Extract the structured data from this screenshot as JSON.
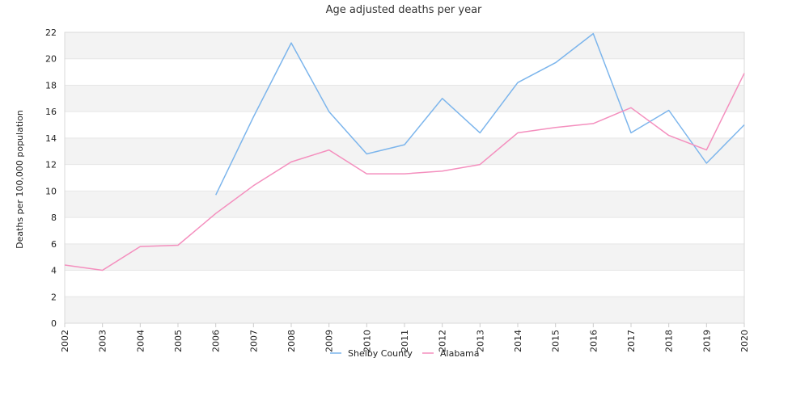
{
  "chart_data": {
    "type": "line",
    "title": "Age adjusted deaths per year",
    "ylabel": "Deaths per 100,000 population",
    "xlabel": "",
    "x": [
      "2002",
      "2003",
      "2004",
      "2005",
      "2006",
      "2007",
      "2008",
      "2009",
      "2010",
      "2011",
      "2012",
      "2013",
      "2014",
      "2015",
      "2016",
      "2017",
      "2018",
      "2019",
      "2020"
    ],
    "ylim": [
      0,
      22
    ],
    "yticks": [
      0,
      2,
      4,
      6,
      8,
      10,
      12,
      14,
      16,
      18,
      20,
      22
    ],
    "grid": "alternating horizontal bands",
    "legend_position": "bottom",
    "series": [
      {
        "name": "Shelby County",
        "color": "#7cb5ec",
        "values": [
          null,
          null,
          null,
          null,
          9.7,
          15.6,
          21.2,
          16.0,
          12.8,
          13.5,
          17.0,
          14.4,
          18.2,
          19.7,
          21.9,
          14.4,
          16.1,
          12.1,
          15.0
        ]
      },
      {
        "name": "Alabama",
        "color": "#f48fbe",
        "values": [
          4.4,
          4.0,
          5.8,
          5.9,
          8.3,
          10.4,
          12.2,
          13.1,
          11.3,
          11.3,
          11.5,
          12.0,
          14.4,
          14.8,
          15.1,
          16.3,
          14.2,
          13.1,
          18.9
        ]
      }
    ]
  }
}
